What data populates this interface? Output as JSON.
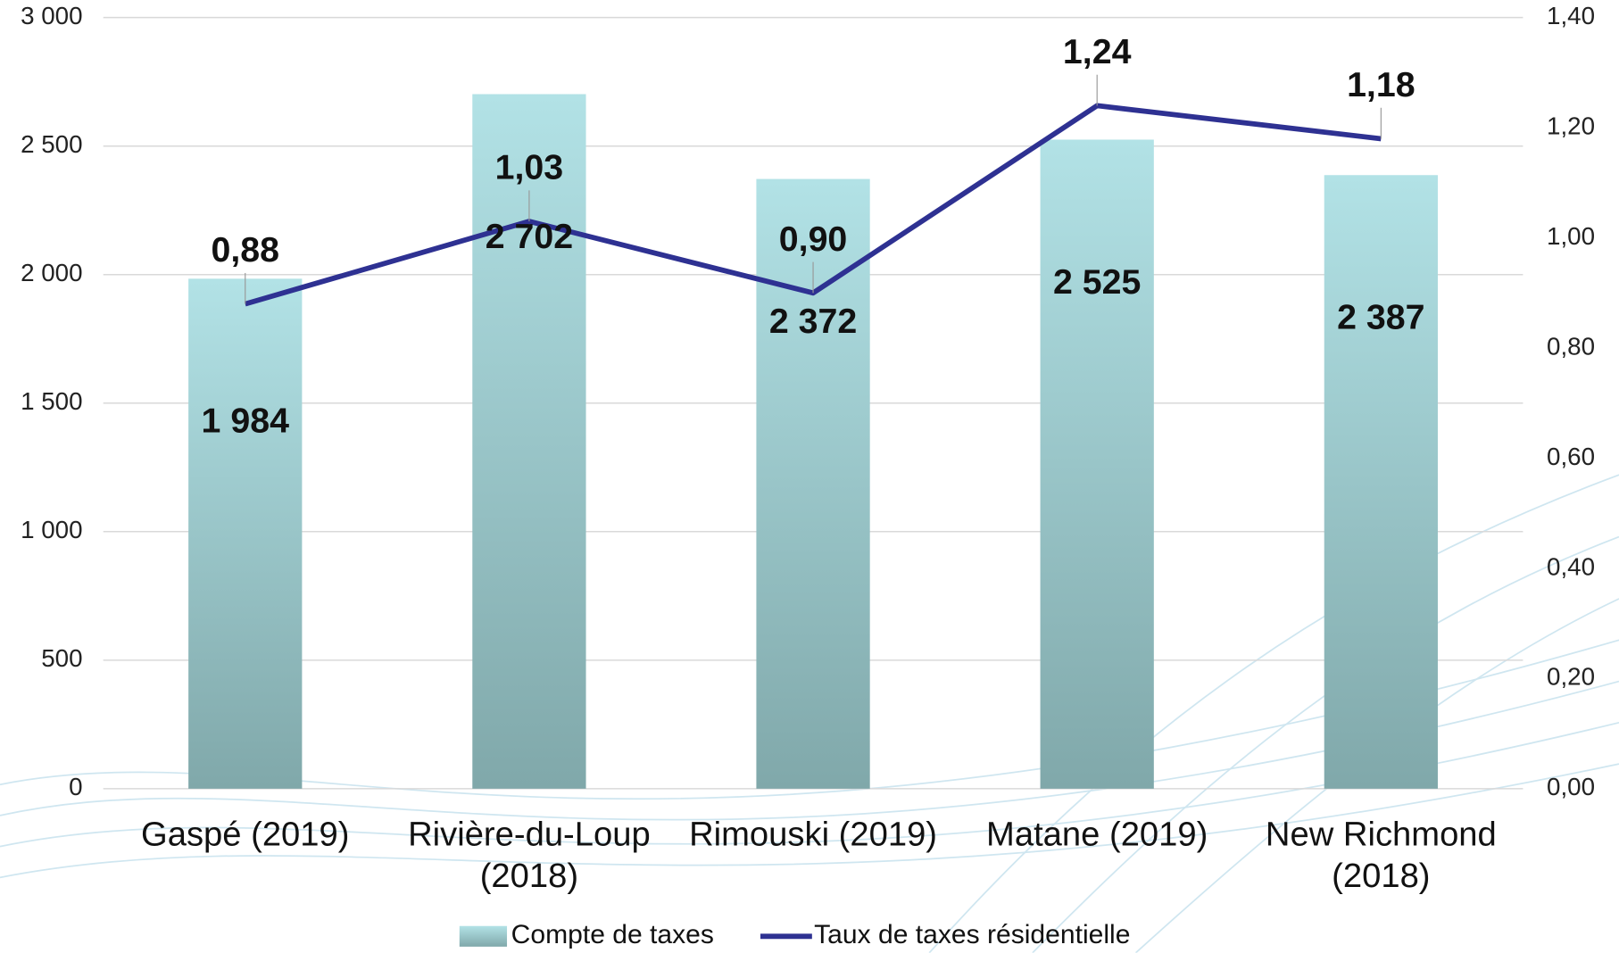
{
  "chart_data": {
    "type": "bar",
    "categories": [
      "Gaspé (2019)",
      "Rivière-du-Loup (2018)",
      "Rimouski (2019)",
      "Matane (2019)",
      "New Richmond (2018)"
    ],
    "series": [
      {
        "name": "Compte de taxes",
        "type": "bar",
        "color": "#a9d9dd",
        "values": [
          1984,
          2702,
          2372,
          2525,
          2387
        ],
        "value_labels": [
          "1 984",
          "2 702",
          "2 372",
          "2 525",
          "2 387"
        ]
      },
      {
        "name": "Taux de taxes résidentielle",
        "type": "line",
        "axis": "y2",
        "color": "#2e3192",
        "values": [
          0.88,
          1.03,
          0.9,
          1.24,
          1.18
        ],
        "value_labels": [
          "0,88",
          "1,03",
          "0,90",
          "1,24",
          "1,18"
        ]
      }
    ],
    "ylim": [
      0,
      3000
    ],
    "yticks": [
      0,
      500,
      {
        "value": 1000,
        "label": "1 000"
      },
      {
        "value": 1500,
        "label": "1 500"
      },
      {
        "value": 2000,
        "label": "2 000"
      },
      {
        "value": 2500,
        "label": "2 500"
      },
      {
        "value": 3000,
        "label": "3 000"
      }
    ],
    "y2lim": [
      0,
      1.4
    ],
    "y2ticks": [
      {
        "value": 0,
        "label": "0,00"
      },
      {
        "value": 0.2,
        "label": "0,20"
      },
      {
        "value": 0.4,
        "label": "0,40"
      },
      {
        "value": 0.6,
        "label": "0,60"
      },
      {
        "value": 0.8,
        "label": "0,80"
      },
      {
        "value": 1.0,
        "label": "1,00"
      },
      {
        "value": 1.2,
        "label": "1,20"
      },
      {
        "value": 1.4,
        "label": "1,40"
      }
    ],
    "grid": true,
    "legend": "bottom"
  }
}
